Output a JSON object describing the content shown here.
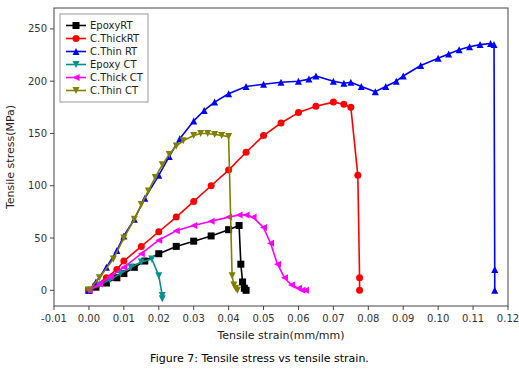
{
  "chart_data": {
    "type": "line",
    "title": "Figure 7: Tensile stress vs tensile strain.",
    "x_label": "Tensile strain(mm/mm)",
    "y_label": "Tensile stress(MPa)",
    "xlim": [
      -0.01,
      0.12
    ],
    "ylim": [
      -15,
      270
    ],
    "xticks": [
      {
        "value": -0.01,
        "label": "-0.01"
      },
      {
        "value": 0.0,
        "label": "0.00"
      },
      {
        "value": 0.01,
        "label": "0.01"
      },
      {
        "value": 0.02,
        "label": "0.02"
      },
      {
        "value": 0.03,
        "label": "0.03"
      },
      {
        "value": 0.04,
        "label": "0.04"
      },
      {
        "value": 0.05,
        "label": "0.05"
      },
      {
        "value": 0.06,
        "label": "0.06"
      },
      {
        "value": 0.07,
        "label": "0.07"
      },
      {
        "value": 0.08,
        "label": "0.08"
      },
      {
        "value": 0.09,
        "label": "0.09"
      },
      {
        "value": 0.1,
        "label": "0.10"
      },
      {
        "value": 0.11,
        "label": "0.11"
      },
      {
        "value": 0.12,
        "label": "0.12"
      }
    ],
    "yticks": [
      0,
      50,
      100,
      150,
      200,
      250
    ],
    "grid": false,
    "legend": "upper-left",
    "series": [
      {
        "name": "EpoxyRT",
        "color": "#000000",
        "marker": "square",
        "x": [
          0.0,
          0.002,
          0.005,
          0.008,
          0.01,
          0.013,
          0.016,
          0.02,
          0.025,
          0.03,
          0.035,
          0.04,
          0.043,
          0.0435,
          0.044,
          0.0445,
          0.045
        ],
        "values": [
          0,
          3,
          7,
          12,
          16,
          22,
          28,
          35,
          42,
          47,
          52,
          58,
          62,
          25,
          8,
          2,
          0
        ]
      },
      {
        "name": "C.ThickRT",
        "color": "#ff0000",
        "marker": "circle",
        "x": [
          0.0,
          0.002,
          0.005,
          0.008,
          0.01,
          0.015,
          0.02,
          0.025,
          0.03,
          0.035,
          0.04,
          0.045,
          0.05,
          0.055,
          0.06,
          0.065,
          0.07,
          0.073,
          0.075,
          0.077,
          0.0775,
          0.0775
        ],
        "values": [
          0,
          5,
          12,
          20,
          28,
          42,
          56,
          70,
          85,
          100,
          115,
          132,
          148,
          160,
          170,
          176,
          180,
          178,
          175,
          110,
          12,
          0
        ]
      },
      {
        "name": "C.Thin RT",
        "color": "#0000ff",
        "marker": "triangle-up",
        "x": [
          0.0,
          0.002,
          0.005,
          0.008,
          0.01,
          0.013,
          0.016,
          0.02,
          0.023,
          0.026,
          0.03,
          0.033,
          0.036,
          0.04,
          0.045,
          0.05,
          0.055,
          0.06,
          0.063,
          0.065,
          0.07,
          0.073,
          0.075,
          0.078,
          0.082,
          0.085,
          0.088,
          0.09,
          0.095,
          0.1,
          0.103,
          0.106,
          0.109,
          0.112,
          0.115,
          0.116,
          0.1162,
          0.1162
        ],
        "values": [
          0,
          8,
          22,
          38,
          52,
          68,
          88,
          110,
          128,
          145,
          162,
          172,
          180,
          188,
          195,
          197,
          199,
          200,
          202,
          205,
          200,
          198,
          199,
          195,
          190,
          195,
          200,
          205,
          215,
          222,
          226,
          230,
          233,
          235,
          236,
          235,
          20,
          0
        ]
      },
      {
        "name": "Epoxy CT",
        "color": "#009090",
        "marker": "triangle-down",
        "x": [
          0.0,
          0.003,
          0.006,
          0.009,
          0.012,
          0.015,
          0.018,
          0.02,
          0.021,
          0.021
        ],
        "values": [
          0,
          5,
          10,
          16,
          22,
          27,
          30,
          14,
          -5,
          -8
        ]
      },
      {
        "name": "C.Thick CT",
        "color": "#ff00ff",
        "marker": "triangle-left",
        "x": [
          0.0,
          0.003,
          0.006,
          0.01,
          0.015,
          0.02,
          0.025,
          0.03,
          0.035,
          0.04,
          0.043,
          0.045,
          0.047,
          0.05,
          0.052,
          0.054,
          0.056,
          0.058,
          0.06,
          0.061,
          0.062
        ],
        "values": [
          0,
          6,
          13,
          22,
          35,
          48,
          57,
          62,
          66,
          70,
          72,
          72,
          70,
          60,
          45,
          25,
          12,
          5,
          2,
          0,
          0
        ]
      },
      {
        "name": "C.Thin CT",
        "color": "#808000",
        "marker": "triangle-down",
        "x": [
          0.0,
          0.003,
          0.007,
          0.01,
          0.013,
          0.015,
          0.017,
          0.019,
          0.021,
          0.023,
          0.025,
          0.027,
          0.03,
          0.032,
          0.034,
          0.036,
          0.038,
          0.04,
          0.041,
          0.0415,
          0.042,
          0.0425
        ],
        "values": [
          0,
          12,
          30,
          50,
          68,
          82,
          95,
          108,
          120,
          130,
          138,
          143,
          148,
          150,
          150,
          149,
          148,
          147,
          14,
          5,
          2,
          0
        ]
      }
    ]
  }
}
